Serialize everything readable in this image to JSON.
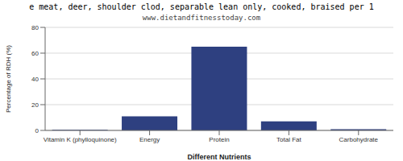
{
  "chart_data": {
    "type": "bar",
    "title": "e meat, deer, shoulder clod, separable lean only, cooked, braised per 1",
    "subtitle": "www.dietandfitnesstoday.com",
    "xlabel": "Different Nutrients",
    "ylabel": "Percentage of RDH (%)",
    "categories": [
      "Vitamin K (phylloquinone)",
      "Energy",
      "Protein",
      "Total Fat",
      "Carbohydrate"
    ],
    "values": [
      0.5,
      11,
      65,
      7,
      1
    ],
    "color": "#2e4080",
    "ylim": [
      0,
      80
    ],
    "yticks": [
      0,
      20,
      40,
      60,
      80
    ],
    "grid": true
  }
}
